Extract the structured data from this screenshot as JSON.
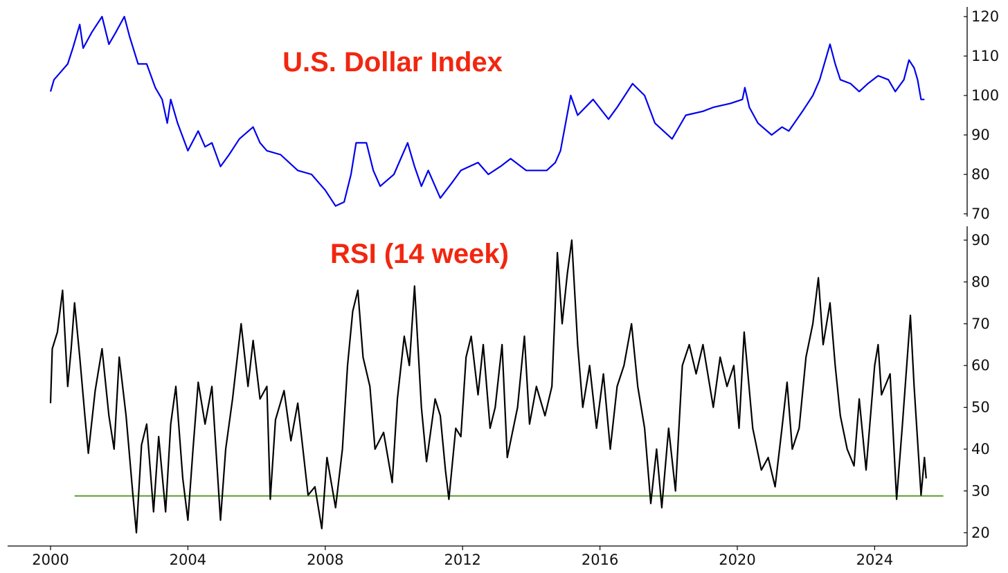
{
  "chart_data": [
    {
      "type": "line",
      "title": "U.S. Dollar Index",
      "title_color": "#f2260f",
      "xlabel": "",
      "ylabel": "",
      "xlim": [
        1998.75,
        2026.5
      ],
      "ylim": [
        69.5,
        121.5
      ],
      "yticks": [
        70,
        80,
        90,
        100,
        110,
        120
      ],
      "y_axis_side": "right",
      "grid": false,
      "series": [
        {
          "name": "U.S. Dollar Index",
          "color": "#0000ee",
          "x": [
            2000.0,
            2000.1,
            2000.3,
            2000.5,
            2000.65,
            2000.85,
            2000.95,
            2001.2,
            2001.5,
            2001.7,
            2001.9,
            2002.15,
            2002.3,
            2002.55,
            2002.8,
            2003.05,
            2003.25,
            2003.4,
            2003.5,
            2003.7,
            2004.0,
            2004.3,
            2004.5,
            2004.7,
            2004.95,
            2005.2,
            2005.5,
            2005.9,
            2006.1,
            2006.3,
            2006.7,
            2007.2,
            2007.6,
            2008.0,
            2008.3,
            2008.55,
            2008.75,
            2008.9,
            2009.2,
            2009.4,
            2009.6,
            2010.0,
            2010.4,
            2010.6,
            2010.8,
            2011.0,
            2011.35,
            2011.7,
            2011.95,
            2012.45,
            2012.75,
            2013.1,
            2013.4,
            2013.85,
            2014.45,
            2014.7,
            2014.85,
            2015.15,
            2015.35,
            2015.8,
            2016.25,
            2016.5,
            2016.95,
            2017.3,
            2017.6,
            2018.1,
            2018.5,
            2019.0,
            2019.3,
            2019.8,
            2020.15,
            2020.22,
            2020.35,
            2020.6,
            2021.0,
            2021.3,
            2021.5,
            2021.9,
            2022.2,
            2022.4,
            2022.7,
            2022.85,
            2023.0,
            2023.3,
            2023.55,
            2023.8,
            2024.1,
            2024.4,
            2024.6,
            2024.85,
            2025.0,
            2025.15,
            2025.25,
            2025.35,
            2025.45
          ],
          "y": [
            101,
            104,
            106,
            108,
            112,
            118,
            112,
            116,
            120,
            113,
            116,
            120,
            115,
            108,
            108,
            102,
            99,
            93,
            99,
            93,
            86,
            91,
            87,
            88,
            82,
            85,
            89,
            92,
            88,
            86,
            85,
            81,
            80,
            76,
            72,
            73,
            80,
            88,
            88,
            81,
            77,
            80,
            88,
            82,
            77,
            81,
            74,
            78,
            81,
            83,
            80,
            82,
            84,
            81,
            81,
            83,
            86,
            100,
            95,
            99,
            94,
            97,
            103,
            100,
            93,
            89,
            95,
            96,
            97,
            98,
            99,
            102,
            97,
            93,
            90,
            92,
            91,
            96,
            100,
            104,
            113,
            108,
            104,
            103,
            101,
            103,
            105,
            104,
            101,
            104,
            109,
            107,
            104,
            99,
            99
          ]
        }
      ]
    },
    {
      "type": "line",
      "title": "RSI (14 week)",
      "title_color": "#f2260f",
      "xlabel": "",
      "ylabel": "",
      "xlim": [
        1998.75,
        2026.5
      ],
      "ylim": [
        17,
        92.5
      ],
      "yticks": [
        20,
        30,
        40,
        50,
        60,
        70,
        80,
        90
      ],
      "xticks": [
        "2000",
        "2004",
        "2008",
        "2012",
        "2016",
        "2020",
        "2024"
      ],
      "xtick_values": [
        2000,
        2004,
        2008,
        2012,
        2016,
        2020,
        2024
      ],
      "y_axis_side": "right",
      "grid": false,
      "reference_line": {
        "y": 28.8,
        "x_start": 2000.7,
        "x_end": 2026.0,
        "color": "#5a9a2a"
      },
      "series": [
        {
          "name": "RSI (14 week)",
          "color": "#000000",
          "x": [
            2000.0,
            2000.05,
            2000.2,
            2000.35,
            2000.5,
            2000.6,
            2000.7,
            2000.85,
            2001.0,
            2001.1,
            2001.3,
            2001.5,
            2001.7,
            2001.85,
            2002.0,
            2002.2,
            2002.4,
            2002.5,
            2002.65,
            2002.8,
            2003.0,
            2003.15,
            2003.35,
            2003.5,
            2003.65,
            2003.85,
            2004.0,
            2004.15,
            2004.3,
            2004.5,
            2004.7,
            2004.95,
            2005.1,
            2005.3,
            2005.55,
            2005.75,
            2005.9,
            2006.1,
            2006.3,
            2006.4,
            2006.55,
            2006.8,
            2007.0,
            2007.2,
            2007.5,
            2007.7,
            2007.9,
            2008.05,
            2008.3,
            2008.5,
            2008.65,
            2008.8,
            2008.95,
            2009.1,
            2009.3,
            2009.45,
            2009.7,
            2009.95,
            2010.1,
            2010.3,
            2010.45,
            2010.6,
            2010.8,
            2010.95,
            2011.2,
            2011.35,
            2011.5,
            2011.6,
            2011.8,
            2011.95,
            2012.1,
            2012.25,
            2012.45,
            2012.6,
            2012.8,
            2012.95,
            2013.15,
            2013.3,
            2013.6,
            2013.8,
            2013.95,
            2014.15,
            2014.4,
            2014.6,
            2014.76,
            2014.9,
            2015.05,
            2015.18,
            2015.35,
            2015.5,
            2015.7,
            2015.9,
            2016.1,
            2016.3,
            2016.5,
            2016.7,
            2016.92,
            2017.1,
            2017.3,
            2017.48,
            2017.65,
            2017.8,
            2018.0,
            2018.2,
            2018.4,
            2018.6,
            2018.8,
            2019.0,
            2019.3,
            2019.5,
            2019.7,
            2019.9,
            2020.05,
            2020.2,
            2020.45,
            2020.7,
            2020.9,
            2021.1,
            2021.3,
            2021.45,
            2021.6,
            2021.8,
            2022.0,
            2022.2,
            2022.36,
            2022.5,
            2022.7,
            2022.85,
            2023.0,
            2023.2,
            2023.4,
            2023.55,
            2023.75,
            2024.0,
            2024.1,
            2024.2,
            2024.45,
            2024.64,
            2024.8,
            2025.04,
            2025.15,
            2025.25,
            2025.35,
            2025.45,
            2025.5
          ],
          "y": [
            51,
            64,
            68,
            78,
            55,
            64,
            75,
            62,
            48,
            39,
            54,
            64,
            48,
            40,
            62,
            48,
            29,
            20,
            41,
            46,
            25,
            43,
            25,
            46,
            55,
            33,
            23,
            40,
            56,
            46,
            55,
            23,
            40,
            52,
            70,
            55,
            66,
            52,
            55,
            28,
            47,
            54,
            42,
            51,
            29,
            31,
            21,
            38,
            26,
            40,
            60,
            73,
            78,
            62,
            55,
            40,
            44,
            32,
            52,
            67,
            60,
            79,
            50,
            37,
            52,
            48,
            35,
            28,
            45,
            43,
            62,
            67,
            53,
            65,
            45,
            50,
            65,
            38,
            50,
            67,
            46,
            55,
            48,
            55,
            87,
            70,
            82,
            90,
            65,
            50,
            60,
            45,
            58,
            40,
            55,
            60,
            70,
            55,
            45,
            27,
            40,
            26,
            45,
            30,
            60,
            65,
            58,
            65,
            50,
            62,
            55,
            60,
            45,
            68,
            45,
            35,
            38,
            31,
            45,
            56,
            40,
            45,
            62,
            70,
            81,
            65,
            75,
            60,
            48,
            40,
            36,
            52,
            35,
            60,
            65,
            53,
            58,
            28,
            45,
            72,
            55,
            42,
            29,
            38,
            33
          ]
        }
      ]
    }
  ]
}
